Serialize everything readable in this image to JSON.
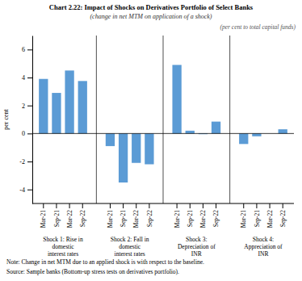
{
  "chart_data": {
    "type": "bar",
    "title": "Chart 2.22: Impact of Shocks on Derivatives Portfolio of Select Banks",
    "subtitle": "(change in net MTM on application of a shock)",
    "ylabel": "per cent",
    "annotations": [
      "(per cent to total capital funds)",
      "Note: Change in net MTM due to an applied shock is with respect to the baseline.",
      "Source: Sample banks (Bottom-up stress tests on derivatives portfolio)."
    ],
    "color": "#5B9BD5",
    "ylim": [
      -5,
      7
    ],
    "yticks": [
      -4,
      -2,
      0,
      2,
      4,
      6
    ],
    "grid": false,
    "groups": [
      {
        "label": "Shock 1: Rise in\ndomestic\ninterest rates",
        "categories": [
          "Mar-21",
          "Sep-21",
          "Mar-22",
          "Sep-22"
        ],
        "values": [
          3.9,
          2.9,
          4.5,
          3.75
        ]
      },
      {
        "label": "Shock 2: Fall in\ndomestic\ninterest rates",
        "categories": [
          "Mar-21",
          "Sep-21",
          "Mar-22",
          "Sep-22"
        ],
        "values": [
          -0.9,
          -3.5,
          -2.1,
          -2.2
        ]
      },
      {
        "label": "Shock 3:\nDepreciation of\nINR",
        "categories": [
          "Mar-21",
          "Sep-21",
          "Mar-22",
          "Sep-22"
        ],
        "values": [
          4.9,
          0.2,
          -0.05,
          0.85
        ]
      },
      {
        "label": "Shock 4:\nAppreciation of\nINR",
        "categories": [
          "Mar-21",
          "Sep-21",
          "Mar-22",
          "Sep-22"
        ],
        "values": [
          -0.75,
          -0.2,
          0.0,
          0.3
        ]
      }
    ]
  }
}
